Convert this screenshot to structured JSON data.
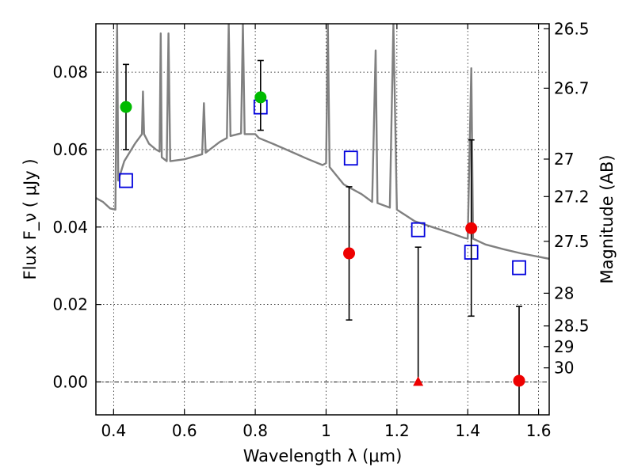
{
  "chart_data": {
    "type": "scatter",
    "xlabel": "Wavelength  λ (μm)",
    "ylabel": "Flux  F_ν  ( μJy )",
    "y2label": "Magnitude (AB)",
    "xlim": [
      0.35,
      1.63
    ],
    "ylim": [
      -0.0085,
      0.0925
    ],
    "grid": true,
    "x_ticks": [
      0.4,
      0.6,
      0.8,
      1.0,
      1.2,
      1.4,
      1.6
    ],
    "x_tick_labels": [
      "0.4",
      "0.6",
      "0.8",
      "1",
      "1.2",
      "1.4",
      "1.6"
    ],
    "y_ticks": [
      0.0,
      0.02,
      0.04,
      0.06,
      0.08
    ],
    "y_tick_labels": [
      "0.00",
      "0.02",
      "0.04",
      "0.06",
      "0.08"
    ],
    "y2_ticks": [
      "26.5",
      "26.7",
      "27",
      "27.2",
      "27.5",
      "28",
      "28.5",
      "29",
      "30"
    ],
    "colors": {
      "spectrum": "#808080",
      "model": "#0000dd",
      "detection": "#ee0000",
      "optical": "#00bb00",
      "errorbar": "#000000"
    },
    "series": [
      {
        "kind": "line",
        "points": [
          [
            0.35,
            0.0475
          ],
          [
            0.37,
            0.0465
          ],
          [
            0.39,
            0.0448
          ],
          [
            0.405,
            0.0445
          ],
          [
            0.41,
            0.095
          ],
          [
            0.413,
            0.052
          ],
          [
            0.43,
            0.057
          ],
          [
            0.46,
            0.0615
          ],
          [
            0.48,
            0.064
          ],
          [
            0.483,
            0.075
          ],
          [
            0.486,
            0.064
          ],
          [
            0.5,
            0.0615
          ],
          [
            0.52,
            0.06
          ],
          [
            0.53,
            0.0595
          ],
          [
            0.533,
            0.09
          ],
          [
            0.536,
            0.058
          ],
          [
            0.55,
            0.057
          ],
          [
            0.555,
            0.09
          ],
          [
            0.56,
            0.057
          ],
          [
            0.6,
            0.0575
          ],
          [
            0.65,
            0.0588
          ],
          [
            0.655,
            0.072
          ],
          [
            0.66,
            0.0592
          ],
          [
            0.7,
            0.062
          ],
          [
            0.72,
            0.063
          ],
          [
            0.725,
            0.095
          ],
          [
            0.73,
            0.0635
          ],
          [
            0.76,
            0.0642
          ],
          [
            0.765,
            0.095
          ],
          [
            0.77,
            0.064
          ],
          [
            0.8,
            0.064
          ],
          [
            0.81,
            0.063
          ],
          [
            0.85,
            0.0615
          ],
          [
            0.9,
            0.0595
          ],
          [
            0.95,
            0.0575
          ],
          [
            0.99,
            0.056
          ],
          [
            1.0,
            0.0565
          ],
          [
            1.005,
            0.095
          ],
          [
            1.01,
            0.0555
          ],
          [
            1.05,
            0.051
          ],
          [
            1.1,
            0.0485
          ],
          [
            1.13,
            0.0465
          ],
          [
            1.14,
            0.0856
          ],
          [
            1.145,
            0.0462
          ],
          [
            1.18,
            0.045
          ],
          [
            1.19,
            0.095
          ],
          [
            1.2,
            0.0445
          ],
          [
            1.25,
            0.0415
          ],
          [
            1.3,
            0.04
          ],
          [
            1.35,
            0.0385
          ],
          [
            1.39,
            0.0372
          ],
          [
            1.4,
            0.037
          ],
          [
            1.41,
            0.081
          ],
          [
            1.415,
            0.037
          ],
          [
            1.45,
            0.0355
          ],
          [
            1.5,
            0.0343
          ],
          [
            1.55,
            0.0332
          ],
          [
            1.63,
            0.0318
          ]
        ]
      },
      {
        "kind": "model_squares",
        "x": [
          0.435,
          0.815,
          1.07,
          1.26,
          1.41,
          1.545
        ],
        "y": [
          0.052,
          0.071,
          0.0578,
          0.0393,
          0.0335,
          0.0295
        ]
      },
      {
        "kind": "optical_points",
        "x": [
          0.435,
          0.815
        ],
        "y": [
          0.071,
          0.0735
        ],
        "err_low": [
          0.011,
          0.0085
        ],
        "err_high": [
          0.011,
          0.0095
        ]
      },
      {
        "kind": "detection_points",
        "x": [
          1.065,
          1.41,
          1.545
        ],
        "y": [
          0.0332,
          0.0397,
          0.0003
        ],
        "err_low": [
          0.0172,
          0.0227,
          0.015
        ],
        "err_high": [
          0.0172,
          0.0228,
          0.0192
        ]
      },
      {
        "kind": "upper_limit",
        "x": [
          1.26
        ],
        "y": [
          0.0
        ],
        "err_high": [
          0.0348
        ]
      }
    ]
  }
}
